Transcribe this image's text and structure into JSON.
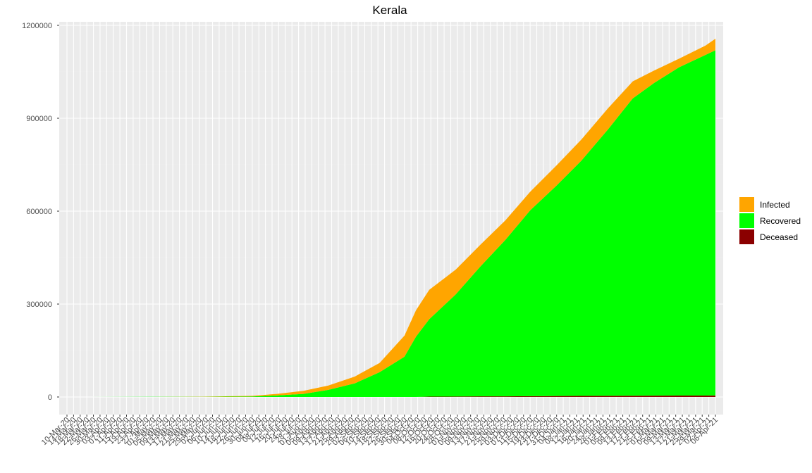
{
  "chart_data": {
    "type": "area",
    "stacked": true,
    "title": "Kerala",
    "xlabel": "",
    "ylabel": "",
    "ylim": [
      -55000,
      1200000
    ],
    "y_ticks": [
      0,
      300000,
      600000,
      900000,
      1200000
    ],
    "y_tick_labels": [
      "0",
      "300000",
      "600000",
      "900000",
      "1200000"
    ],
    "legend_position": "right",
    "grid": true,
    "x_start": "2020-03-10",
    "x_end": "2021-04-06",
    "x_tick_labels": [
      "10-Mar-20",
      "14-Mar-20",
      "18-Mar-20",
      "22-Mar-20",
      "26-Mar-20",
      "30-Mar-20",
      "03-Apr-20",
      "07-Apr-20",
      "11-Apr-20",
      "15-Apr-20",
      "19-Apr-20",
      "23-Apr-20",
      "27-Apr-20",
      "01-May-20",
      "05-May-20",
      "09-May-20",
      "13-May-20",
      "17-May-20",
      "21-May-20",
      "25-May-20",
      "29-May-20",
      "02-Jun-20",
      "06-Jun-20",
      "10-Jun-20",
      "14-Jun-20",
      "18-Jun-20",
      "22-Jun-20",
      "26-Jun-20",
      "30-Jun-20",
      "04-Jul-20",
      "08-Jul-20",
      "12-Jul-20",
      "16-Jul-20",
      "20-Jul-20",
      "24-Jul-20",
      "28-Jul-20",
      "01-Aug-20",
      "05-Aug-20",
      "09-Aug-20",
      "13-Aug-20",
      "17-Aug-20",
      "21-Aug-20",
      "25-Aug-20",
      "29-Aug-20",
      "02-Sep-20",
      "06-Sep-20",
      "10-Sep-20",
      "14-Sep-20",
      "18-Sep-20",
      "22-Sep-20",
      "26-Sep-20",
      "30-Sep-20",
      "04-Oct-20",
      "08-Oct-20",
      "12-Oct-20",
      "16-Oct-20",
      "20-Oct-20",
      "24-Oct-20",
      "28-Oct-20",
      "01-Nov-20",
      "05-Nov-20",
      "09-Nov-20",
      "13-Nov-20",
      "17-Nov-20",
      "21-Nov-20",
      "25-Nov-20",
      "29-Nov-20",
      "03-Dec-20",
      "07-Dec-20",
      "11-Dec-20",
      "15-Dec-20",
      "19-Dec-20",
      "23-Dec-20",
      "27-Dec-20",
      "31-Dec-20",
      "04-Jan-21",
      "08-Jan-21",
      "12-Jan-21",
      "16-Jan-21",
      "20-Jan-21",
      "24-Jan-21",
      "28-Jan-21",
      "01-Feb-21",
      "05-Feb-21",
      "09-Feb-21",
      "13-Feb-21",
      "17-Feb-21",
      "21-Feb-21",
      "25-Feb-21",
      "01-Mar-21",
      "05-Mar-21",
      "09-Mar-21",
      "13-Mar-21",
      "17-Mar-21",
      "21-Mar-21",
      "25-Mar-21",
      "29-Mar-21",
      "02-Apr-21",
      "06-Apr-21"
    ],
    "dates": [
      "2020-03-10",
      "2020-04-30",
      "2020-05-31",
      "2020-06-30",
      "2020-07-15",
      "2020-07-31",
      "2020-08-15",
      "2020-08-31",
      "2020-09-15",
      "2020-09-30",
      "2020-10-07",
      "2020-10-15",
      "2020-10-31",
      "2020-11-15",
      "2020-11-30",
      "2020-12-15",
      "2020-12-31",
      "2021-01-15",
      "2021-01-31",
      "2021-02-15",
      "2021-02-28",
      "2021-03-15",
      "2021-03-31",
      "2021-04-06"
    ],
    "series": [
      {
        "name": "Deceased",
        "color": "#8B0000",
        "values": [
          0,
          0,
          0,
          0,
          0,
          0,
          0,
          0,
          0,
          0,
          0,
          1000,
          1300,
          1900,
          2100,
          2600,
          3000,
          3400,
          3700,
          4000,
          4200,
          4400,
          4600,
          4700
        ]
      },
      {
        "name": "Recovered",
        "color": "#00FF00",
        "values": [
          0,
          500,
          600,
          1800,
          5000,
          10000,
          23000,
          44000,
          80000,
          130000,
          195000,
          250000,
          330000,
          420000,
          505000,
          600000,
          680000,
          760000,
          860000,
          960000,
          1010000,
          1060000,
          1100000,
          1115000
        ]
      },
      {
        "name": "Infected",
        "color": "#FFA500",
        "values": [
          0,
          0,
          500,
          2000,
          5000,
          10000,
          14000,
          22000,
          30000,
          68000,
          85000,
          95000,
          80000,
          70000,
          63000,
          60000,
          65000,
          68000,
          68000,
          55000,
          40000,
          28000,
          30000,
          37000
        ]
      }
    ]
  },
  "legend": [
    {
      "label": "Infected",
      "color": "#FFA500"
    },
    {
      "label": "Recovered",
      "color": "#00FF00"
    },
    {
      "label": "Deceased",
      "color": "#8B0000"
    }
  ]
}
